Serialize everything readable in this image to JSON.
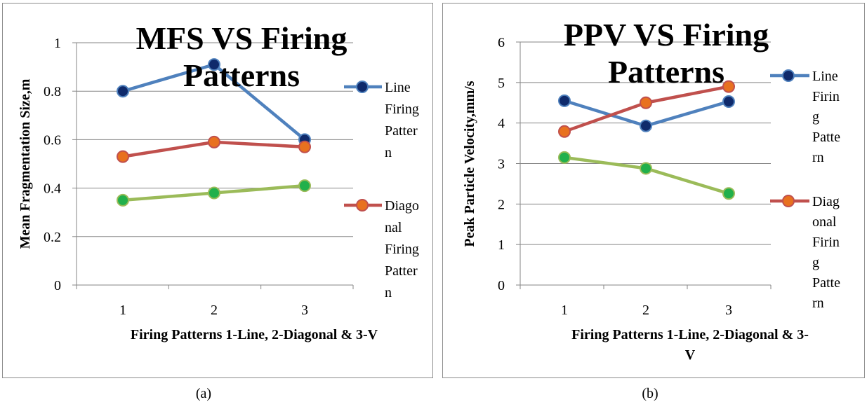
{
  "chart_data": [
    {
      "type": "line",
      "title": "MFS VS Firing Patterns",
      "xlabel": "Firing Patterns  1-Line, 2-Diagonal & 3-V",
      "ylabel": "Mean Fragmentation Size,m",
      "categories": [
        "1",
        "2",
        "3"
      ],
      "ylim": [
        0,
        1
      ],
      "yticks": [
        "0",
        "0.2",
        "0.4",
        "0.6",
        "0.8",
        "1"
      ],
      "grid": true,
      "legend_position": "right",
      "series": [
        {
          "name": "Line Firing Pattern",
          "legend_lines": [
            "Line",
            "Firing",
            "Patter",
            "n"
          ],
          "values": [
            0.8,
            0.91,
            0.6
          ],
          "color": "#4f81bd",
          "marker": "#0f2a6b"
        },
        {
          "name": "Diagonal Firing Pattern",
          "legend_lines": [
            "Diago",
            "nal",
            "Firing",
            "Patter",
            "n"
          ],
          "values": [
            0.53,
            0.59,
            0.57
          ],
          "color": "#c0504d",
          "marker": "#e8711f"
        },
        {
          "values": [
            0.35,
            0.38,
            0.41
          ],
          "color": "#9bbb59",
          "marker": "#22b04b"
        }
      ]
    },
    {
      "type": "line",
      "title": "PPV VS Firing Patterns",
      "xlabel": "Firing Patterns  1-Line, 2-Diagonal & 3-V",
      "ylabel": "Peak Particle Velocity,mm/s",
      "categories": [
        "1",
        "2",
        "3"
      ],
      "ylim": [
        0,
        6
      ],
      "yticks": [
        "0",
        "1",
        "2",
        "3",
        "4",
        "5",
        "6"
      ],
      "grid": true,
      "legend_position": "right",
      "series": [
        {
          "name": "Line Firing Pattern",
          "legend_lines": [
            "Line",
            "Firin",
            "g",
            "Patte",
            "rn"
          ],
          "values": [
            4.55,
            3.93,
            4.53
          ],
          "color": "#4f81bd",
          "marker": "#0f2a6b"
        },
        {
          "name": "Diagonal Firing Pattern",
          "legend_lines": [
            "Diag",
            "onal",
            "Firin",
            "g",
            "Patte",
            "rn"
          ],
          "values": [
            3.79,
            4.5,
            4.9
          ],
          "color": "#c0504d",
          "marker": "#e8711f"
        },
        {
          "values": [
            3.15,
            2.88,
            2.26
          ],
          "color": "#9bbb59",
          "marker": "#22b04b"
        }
      ]
    }
  ],
  "captions": {
    "a": "(a)",
    "b": "(b)"
  }
}
